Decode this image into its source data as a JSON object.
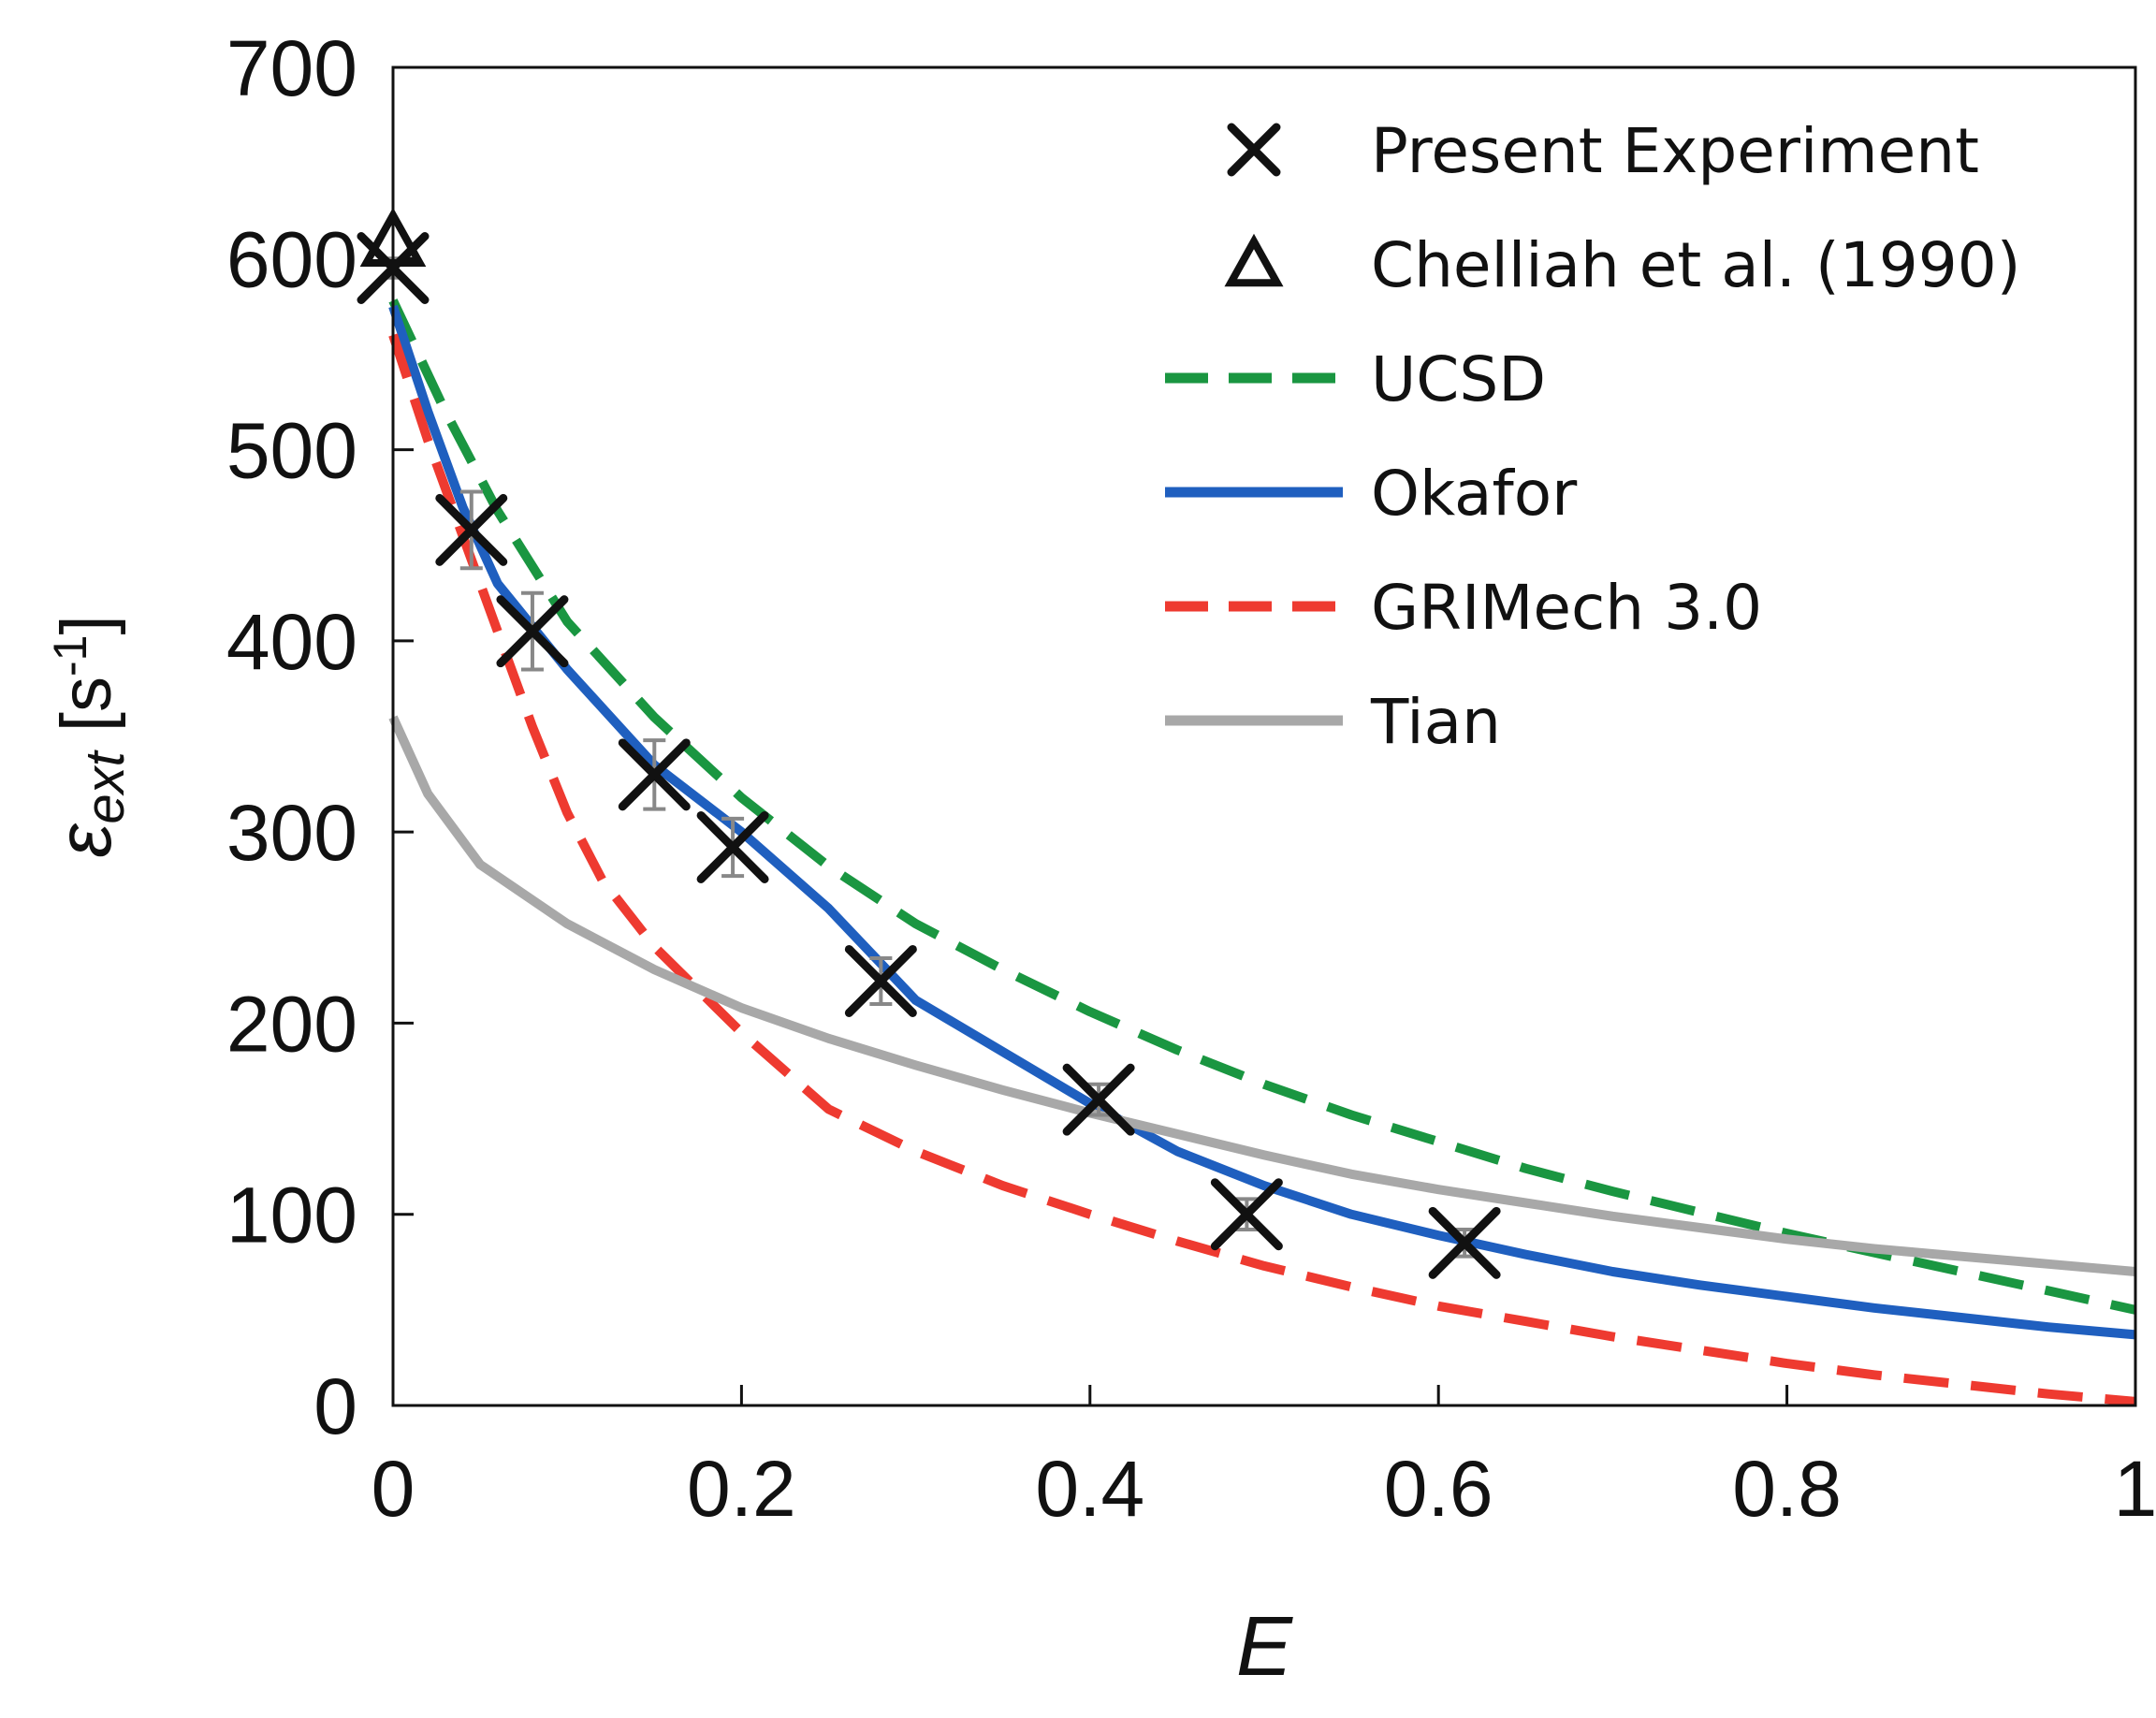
{
  "chart_data": {
    "type": "line",
    "title": "",
    "xlabel": "E",
    "ylabel": {
      "symbol": "ε",
      "subscript": "ext",
      "units_open": " [s",
      "units_sup": "-1",
      "units_close": "]"
    },
    "xlim": [
      0,
      1
    ],
    "ylim": [
      0,
      700
    ],
    "xticks": [
      0,
      0.2,
      0.4,
      0.6,
      0.8,
      1
    ],
    "xtick_labels": [
      "0",
      "0.2",
      "0.4",
      "0.6",
      "0.8",
      "1"
    ],
    "yticks": [
      0,
      100,
      200,
      300,
      400,
      500,
      600,
      700
    ],
    "ytick_labels": [
      "0",
      "100",
      "200",
      "300",
      "400",
      "500",
      "600",
      "700"
    ],
    "grid": false,
    "legend_position": "top-right",
    "series": [
      {
        "name": "Present Experiment",
        "kind": "marker-x",
        "color": "#111111",
        "points": [
          [
            0,
            595
          ],
          [
            0.045,
            458
          ],
          [
            0.08,
            405
          ],
          [
            0.15,
            330
          ],
          [
            0.195,
            292
          ],
          [
            0.28,
            222
          ],
          [
            0.405,
            160
          ],
          [
            0.49,
            100
          ],
          [
            0.615,
            85
          ]
        ],
        "errors": [
          5,
          20,
          20,
          18,
          15,
          12,
          8,
          8,
          7
        ]
      },
      {
        "name": "Chelliah et al. (1990)",
        "kind": "marker-triangle",
        "color": "#111111",
        "points": [
          [
            0,
            608
          ]
        ]
      },
      {
        "name": "UCSD",
        "kind": "line-dashed",
        "color": "#1a9641",
        "points": [
          [
            0,
            578
          ],
          [
            0.03,
            520
          ],
          [
            0.06,
            468
          ],
          [
            0.1,
            410
          ],
          [
            0.15,
            360
          ],
          [
            0.2,
            318
          ],
          [
            0.25,
            282
          ],
          [
            0.3,
            252
          ],
          [
            0.35,
            228
          ],
          [
            0.4,
            206
          ],
          [
            0.45,
            186
          ],
          [
            0.5,
            168
          ],
          [
            0.55,
            152
          ],
          [
            0.6,
            138
          ],
          [
            0.65,
            124
          ],
          [
            0.7,
            112
          ],
          [
            0.75,
            101
          ],
          [
            0.8,
            90
          ],
          [
            0.85,
            80
          ],
          [
            0.9,
            70
          ],
          [
            0.95,
            60
          ],
          [
            1.0,
            50
          ]
        ]
      },
      {
        "name": "Okafor",
        "kind": "line-solid",
        "color": "#1f5fbf",
        "points": [
          [
            0,
            575
          ],
          [
            0.02,
            520
          ],
          [
            0.04,
            470
          ],
          [
            0.06,
            430
          ],
          [
            0.1,
            385
          ],
          [
            0.15,
            335
          ],
          [
            0.2,
            300
          ],
          [
            0.25,
            260
          ],
          [
            0.3,
            212
          ],
          [
            0.35,
            185
          ],
          [
            0.4,
            158
          ],
          [
            0.45,
            133
          ],
          [
            0.5,
            115
          ],
          [
            0.55,
            100
          ],
          [
            0.6,
            89
          ],
          [
            0.65,
            79
          ],
          [
            0.7,
            70
          ],
          [
            0.75,
            63
          ],
          [
            0.8,
            57
          ],
          [
            0.85,
            51
          ],
          [
            0.9,
            46
          ],
          [
            0.95,
            41
          ],
          [
            1.0,
            37
          ]
        ]
      },
      {
        "name": "GRIMech 3.0",
        "kind": "line-dashed",
        "color": "#ee3a30",
        "points": [
          [
            0,
            560
          ],
          [
            0.02,
            505
          ],
          [
            0.04,
            455
          ],
          [
            0.06,
            405
          ],
          [
            0.08,
            355
          ],
          [
            0.1,
            310
          ],
          [
            0.12,
            275
          ],
          [
            0.15,
            240
          ],
          [
            0.2,
            195
          ],
          [
            0.25,
            155
          ],
          [
            0.3,
            133
          ],
          [
            0.35,
            115
          ],
          [
            0.4,
            100
          ],
          [
            0.45,
            86
          ],
          [
            0.5,
            73
          ],
          [
            0.55,
            62
          ],
          [
            0.6,
            52
          ],
          [
            0.65,
            44
          ],
          [
            0.7,
            36
          ],
          [
            0.75,
            29
          ],
          [
            0.8,
            22
          ],
          [
            0.85,
            16
          ],
          [
            0.9,
            11
          ],
          [
            0.95,
            6
          ],
          [
            1.0,
            2
          ]
        ]
      },
      {
        "name": "Tian",
        "kind": "line-solid",
        "color": "#a8a8a8",
        "points": [
          [
            0,
            360
          ],
          [
            0.02,
            320
          ],
          [
            0.05,
            283
          ],
          [
            0.1,
            252
          ],
          [
            0.15,
            228
          ],
          [
            0.2,
            208
          ],
          [
            0.25,
            192
          ],
          [
            0.3,
            178
          ],
          [
            0.35,
            165
          ],
          [
            0.4,
            153
          ],
          [
            0.45,
            142
          ],
          [
            0.5,
            131
          ],
          [
            0.55,
            121
          ],
          [
            0.6,
            113
          ],
          [
            0.65,
            106
          ],
          [
            0.7,
            99
          ],
          [
            0.75,
            93
          ],
          [
            0.8,
            87
          ],
          [
            0.85,
            82
          ],
          [
            0.9,
            78
          ],
          [
            0.95,
            74
          ],
          [
            1.0,
            70
          ]
        ]
      }
    ]
  }
}
